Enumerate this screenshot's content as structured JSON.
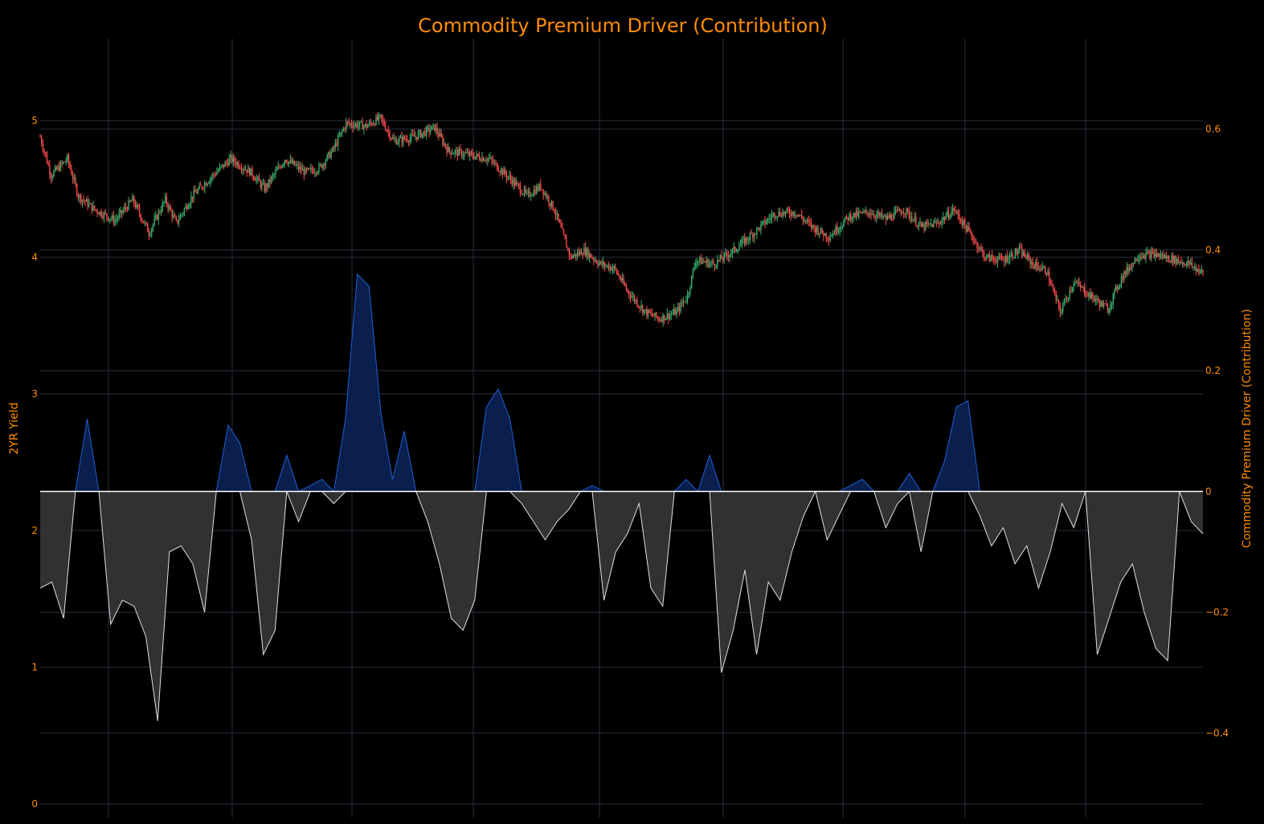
{
  "colors": {
    "background": "#000000",
    "accent": "#ff8c00",
    "grid": "#2a3040",
    "candle_up": "#3cb371",
    "candle_down": "#ff4d4d",
    "positive_line": "#1f5fd6",
    "positive_fill": "#0a1f4d",
    "negative_line": "#e0e0e0",
    "negative_fill": "#3a3a3a"
  },
  "chart_data": {
    "type": "candlestick+area",
    "title": "Commodity Premium Driver (Contribution)",
    "xlabel": "",
    "y_left": {
      "label": "2YR Yield",
      "range": [
        -0.1,
        5.6
      ],
      "ticks": [
        0,
        1,
        2,
        3,
        4,
        5
      ]
    },
    "y_right": {
      "label": "Commodity Premium Driver (Contribution)",
      "range": [
        -0.54,
        0.75
      ],
      "ticks": [
        -0.4,
        -0.2,
        0,
        0.2,
        0.4,
        0.6
      ],
      "tick_labels": [
        "−0.4",
        "−0.2",
        "0",
        "0.2",
        "0.4",
        "0.6"
      ]
    },
    "grid": true,
    "yield_close_path": [
      [
        0,
        4.88
      ],
      [
        8,
        4.6
      ],
      [
        20,
        4.72
      ],
      [
        28,
        4.45
      ],
      [
        40,
        4.35
      ],
      [
        55,
        4.27
      ],
      [
        68,
        4.42
      ],
      [
        80,
        4.18
      ],
      [
        92,
        4.42
      ],
      [
        100,
        4.25
      ],
      [
        112,
        4.45
      ],
      [
        125,
        4.58
      ],
      [
        140,
        4.72
      ],
      [
        155,
        4.62
      ],
      [
        165,
        4.5
      ],
      [
        180,
        4.72
      ],
      [
        195,
        4.62
      ],
      [
        205,
        4.65
      ],
      [
        215,
        4.78
      ],
      [
        225,
        4.98
      ],
      [
        240,
        4.96
      ],
      [
        250,
        5.02
      ],
      [
        260,
        4.85
      ],
      [
        275,
        4.88
      ],
      [
        290,
        4.95
      ],
      [
        300,
        4.78
      ],
      [
        315,
        4.75
      ],
      [
        330,
        4.72
      ],
      [
        345,
        4.58
      ],
      [
        358,
        4.45
      ],
      [
        368,
        4.52
      ],
      [
        378,
        4.35
      ],
      [
        390,
        4.0
      ],
      [
        400,
        4.05
      ],
      [
        412,
        3.95
      ],
      [
        422,
        3.92
      ],
      [
        432,
        3.75
      ],
      [
        445,
        3.6
      ],
      [
        455,
        3.55
      ],
      [
        468,
        3.6
      ],
      [
        476,
        3.72
      ],
      [
        482,
        3.98
      ],
      [
        495,
        3.95
      ],
      [
        510,
        4.05
      ],
      [
        525,
        4.18
      ],
      [
        540,
        4.32
      ],
      [
        555,
        4.33
      ],
      [
        568,
        4.22
      ],
      [
        580,
        4.15
      ],
      [
        595,
        4.3
      ],
      [
        610,
        4.33
      ],
      [
        622,
        4.28
      ],
      [
        635,
        4.35
      ],
      [
        648,
        4.22
      ],
      [
        660,
        4.25
      ],
      [
        672,
        4.35
      ],
      [
        682,
        4.2
      ],
      [
        695,
        4.0
      ],
      [
        708,
        3.98
      ],
      [
        720,
        4.05
      ],
      [
        730,
        3.95
      ],
      [
        740,
        3.9
      ],
      [
        750,
        3.6
      ],
      [
        760,
        3.82
      ],
      [
        772,
        3.72
      ],
      [
        785,
        3.62
      ],
      [
        795,
        3.85
      ],
      [
        808,
        4.02
      ],
      [
        820,
        4.02
      ],
      [
        835,
        3.98
      ],
      [
        845,
        3.95
      ],
      [
        855,
        3.88
      ]
    ],
    "driver_series": [
      -0.16,
      -0.15,
      -0.21,
      0.0,
      0.12,
      0.0,
      -0.22,
      -0.18,
      -0.19,
      -0.24,
      -0.38,
      -0.1,
      -0.09,
      -0.12,
      -0.2,
      0.0,
      0.11,
      0.08,
      -0.08,
      -0.27,
      -0.23,
      0.06,
      -0.05,
      0.01,
      0.02,
      -0.02,
      0.12,
      0.36,
      0.34,
      0.13,
      0.02,
      0.1,
      0.0,
      -0.05,
      -0.12,
      -0.21,
      -0.23,
      -0.18,
      0.14,
      0.17,
      0.12,
      -0.02,
      -0.05,
      -0.08,
      -0.05,
      -0.03,
      0.0,
      0.01,
      -0.18,
      -0.1,
      -0.07,
      -0.02,
      -0.16,
      -0.19,
      0.0,
      0.02,
      0.0,
      0.06,
      -0.3,
      -0.23,
      -0.13,
      -0.27,
      -0.15,
      -0.18,
      -0.1,
      -0.04,
      0.0,
      -0.08,
      -0.04,
      0.01,
      0.02,
      0.0,
      -0.06,
      -0.02,
      0.03,
      -0.1,
      0.0,
      0.05,
      0.14,
      0.15,
      -0.04,
      -0.09,
      -0.06,
      -0.12,
      -0.09,
      -0.16,
      -0.1,
      -0.02,
      -0.06,
      0.0,
      -0.27,
      -0.21,
      -0.15,
      -0.12,
      -0.2,
      -0.26,
      -0.28,
      0.0,
      -0.05,
      -0.07
    ]
  }
}
